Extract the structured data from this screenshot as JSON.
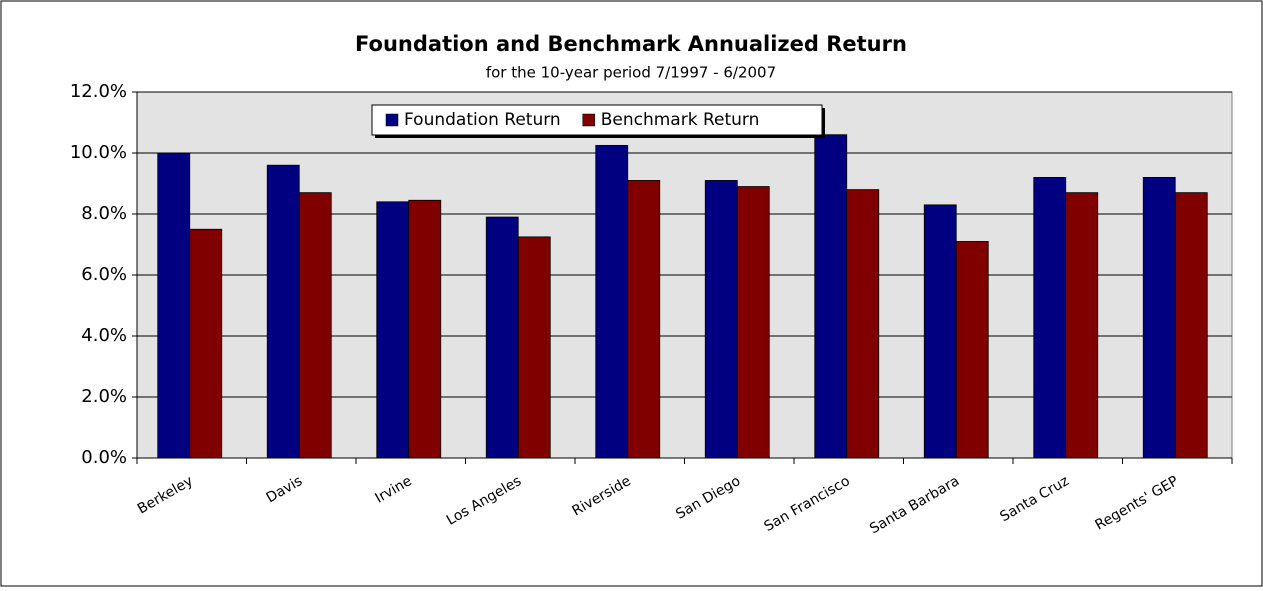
{
  "chart_data": {
    "type": "bar",
    "title": "Foundation and Benchmark Annualized Return",
    "subtitle": "for the 10-year period 7/1997 - 6/2007",
    "categories": [
      "Berkeley",
      "Davis",
      "Irvine",
      "Los Angeles",
      "Riverside",
      "San Diego",
      "San Francisco",
      "Santa Barbara",
      "Santa Cruz",
      "Regents' GEP"
    ],
    "series": [
      {
        "name": "Foundation Return",
        "color": "#000080",
        "values": [
          10.0,
          9.6,
          8.4,
          7.9,
          10.25,
          9.1,
          10.6,
          8.3,
          9.2,
          9.2
        ]
      },
      {
        "name": "Benchmark Return",
        "color": "#800000",
        "values": [
          7.5,
          8.7,
          8.45,
          7.25,
          9.1,
          8.9,
          8.8,
          7.1,
          8.7,
          8.7
        ]
      }
    ],
    "ylim": [
      0,
      12
    ],
    "yticks": [
      {
        "value": 0,
        "label": "0.0%"
      },
      {
        "value": 2,
        "label": "2.0%"
      },
      {
        "value": 4,
        "label": "4.0%"
      },
      {
        "value": 6,
        "label": "6.0%"
      },
      {
        "value": 8,
        "label": "8.0%"
      },
      {
        "value": 10,
        "label": "10.0%"
      },
      {
        "value": 12,
        "label": "12.0%"
      }
    ],
    "grid": true,
    "legend": "top"
  }
}
